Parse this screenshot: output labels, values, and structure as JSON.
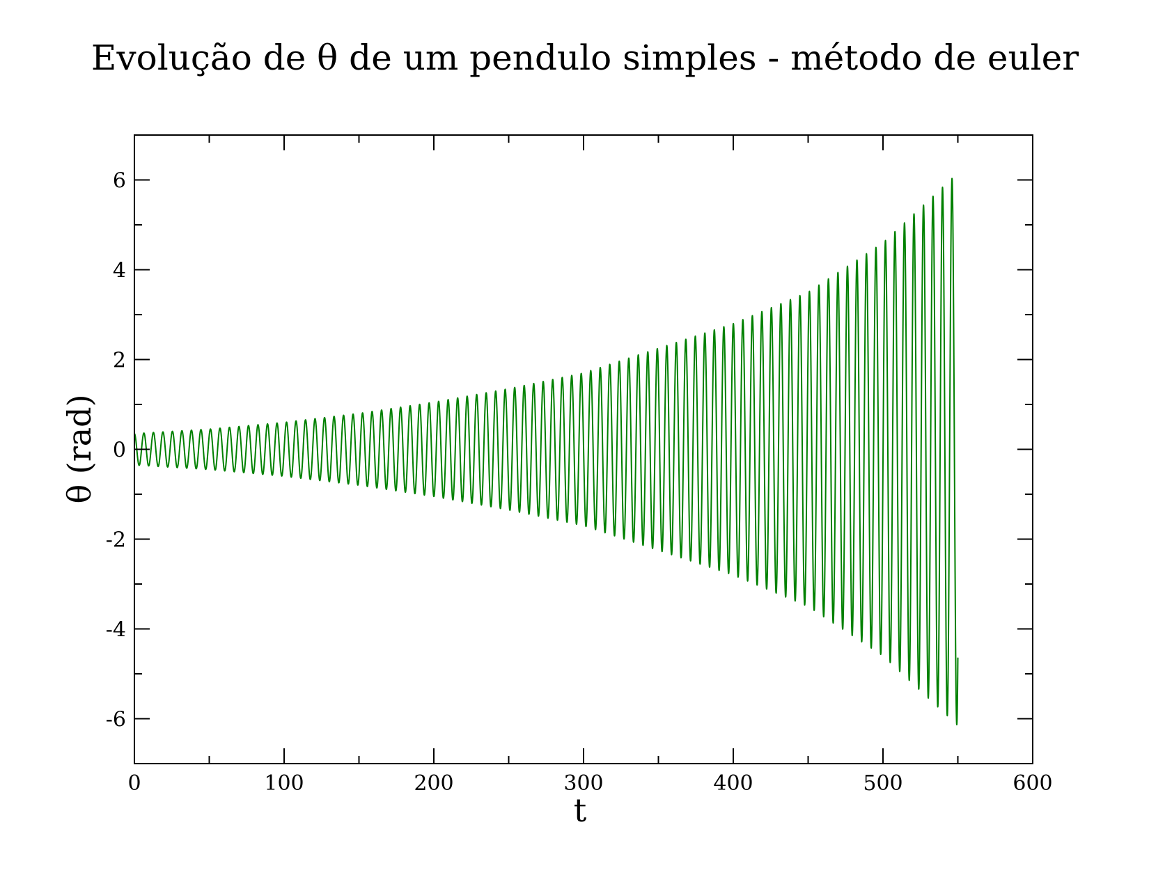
{
  "chart_data": {
    "type": "line",
    "title": "Evolução de θ de um pendulo simples - método de euler",
    "xlabel": "t",
    "ylabel": "θ (rad)",
    "xlim": [
      0,
      600
    ],
    "ylim": [
      -7,
      7
    ],
    "x_ticks": [
      0,
      100,
      200,
      300,
      400,
      500,
      600
    ],
    "x_tick_labels": [
      "0",
      "100",
      "200",
      "300",
      "400",
      "500",
      "600"
    ],
    "x_minor_ticks": [
      50,
      150,
      250,
      350,
      450,
      550
    ],
    "y_ticks": [
      -6,
      -4,
      -2,
      0,
      2,
      4,
      6
    ],
    "y_tick_labels": [
      "-6",
      "-4",
      "-2",
      "0",
      "2",
      "4",
      "6"
    ],
    "y_minor_ticks": [
      -5,
      -3,
      -1,
      1,
      3,
      5
    ],
    "grid": false,
    "legend": "none",
    "series": [
      {
        "color": "#008000",
        "period": 6.35,
        "t_end": 550,
        "x": [
          0,
          50,
          100,
          150,
          200,
          250,
          300,
          350,
          400,
          450,
          500,
          545
        ],
        "amplitude": [
          0.35,
          0.45,
          0.6,
          0.8,
          1.05,
          1.35,
          1.7,
          2.25,
          2.8,
          3.5,
          4.6,
          6.0
        ]
      }
    ]
  }
}
